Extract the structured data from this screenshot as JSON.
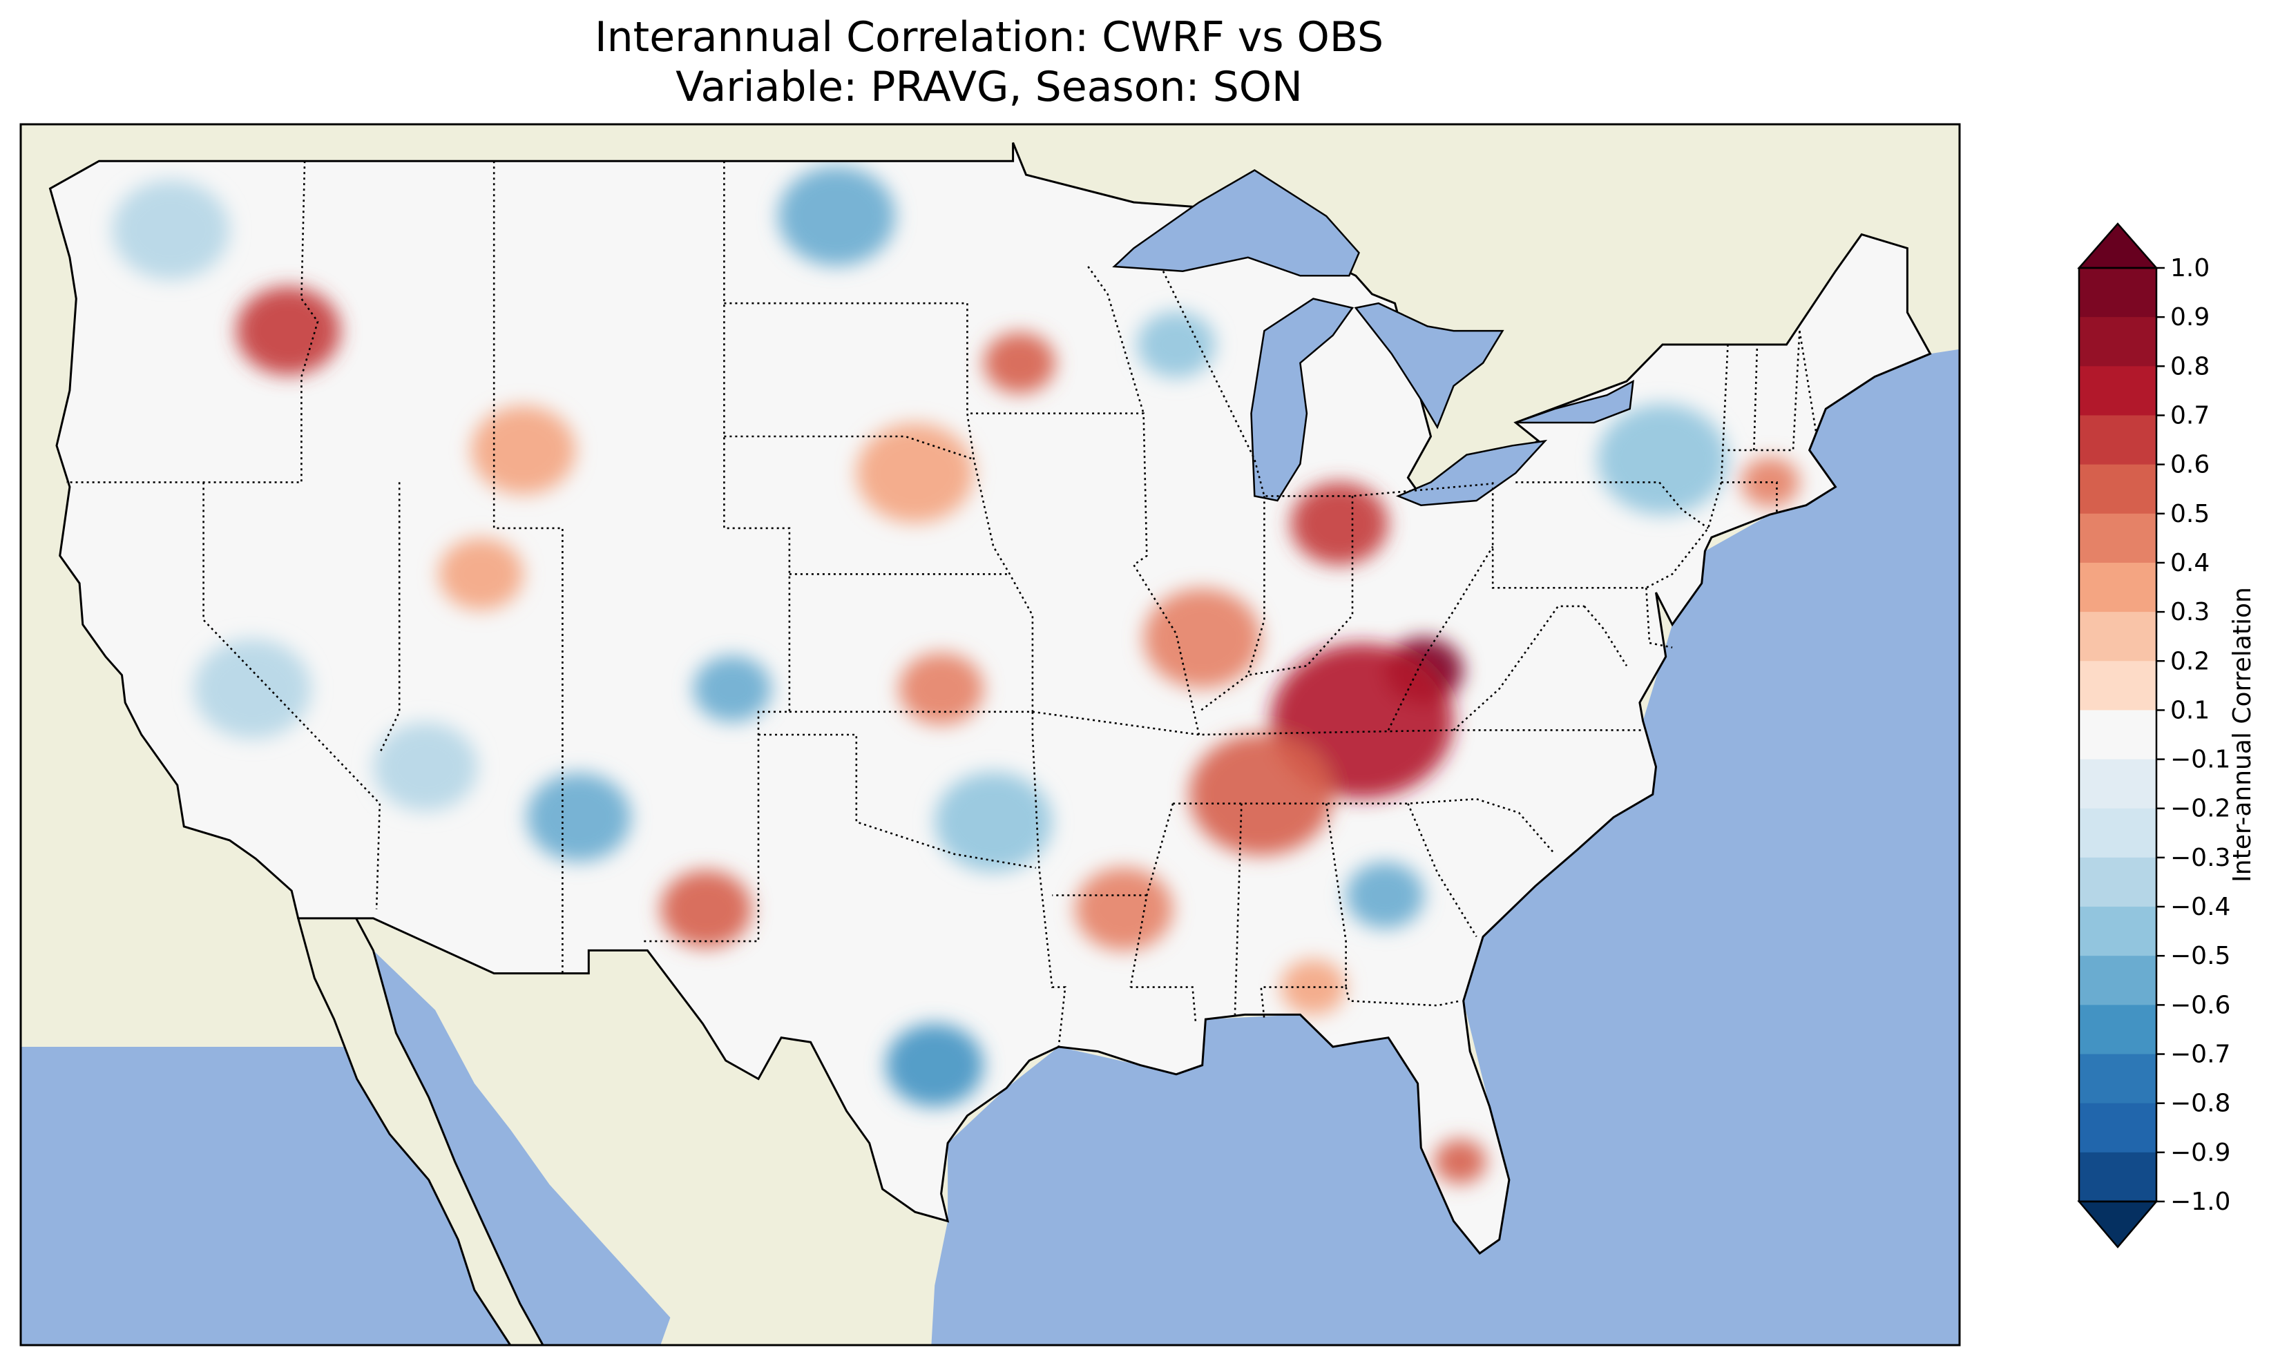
{
  "figure": {
    "title_line1": "Interannual Correlation: CWRF vs OBS",
    "title_line2": "Variable: PRAVG, Season: SON"
  },
  "map": {
    "region": "Contiguous United States with Canada and Mexico",
    "ocean_color": "#94b3df",
    "land_color": "#efefdc",
    "lake_color": "#94b3df",
    "coastline_color": "#000000",
    "border_style": "dotted"
  },
  "colorbar": {
    "label": "Inter-annual Correlation",
    "ticks": [
      "1.0",
      "0.9",
      "0.8",
      "0.7",
      "0.6",
      "0.5",
      "0.4",
      "0.3",
      "0.2",
      "0.1",
      "−0.1",
      "−0.2",
      "−0.3",
      "−0.4",
      "−0.5",
      "−0.6",
      "−0.7",
      "−0.8",
      "−0.9",
      "−1.0"
    ],
    "colors_top_to_bottom": [
      "#67001f",
      "#7c0723",
      "#951127",
      "#b2182b",
      "#c43c3c",
      "#d6604d",
      "#e58267",
      "#f4a582",
      "#f9c4a8",
      "#fddbc7",
      "#f7f7f7",
      "#e1ecf3",
      "#d1e5f0",
      "#b5d6e7",
      "#92c5de",
      "#6aacd0",
      "#4393c3",
      "#2d78b6",
      "#2166ac",
      "#124b8a",
      "#053061"
    ]
  },
  "field_patches": [
    {
      "lon": -82.6,
      "lat": 37.9,
      "r": 1.2,
      "v": 0.95
    },
    {
      "lon": -84.5,
      "lat": 36.8,
      "r": 2.8,
      "v": 0.68
    },
    {
      "lon": -87.6,
      "lat": 35.2,
      "r": 2.2,
      "v": 0.55
    },
    {
      "lon": -85.2,
      "lat": 41.1,
      "r": 1.5,
      "v": 0.58
    },
    {
      "lon": -89.4,
      "lat": 38.6,
      "r": 1.8,
      "v": 0.45
    },
    {
      "lon": -117.4,
      "lat": 45.3,
      "r": 1.6,
      "v": 0.65
    },
    {
      "lon": -95.0,
      "lat": 44.6,
      "r": 1.1,
      "v": 0.55
    },
    {
      "lon": -104.6,
      "lat": 32.7,
      "r": 1.4,
      "v": 0.5
    },
    {
      "lon": -72.0,
      "lat": 42.0,
      "r": 0.9,
      "v": 0.45
    },
    {
      "lon": -81.5,
      "lat": 27.2,
      "r": 0.8,
      "v": 0.5
    },
    {
      "lon": -91.8,
      "lat": 32.7,
      "r": 1.5,
      "v": 0.42
    },
    {
      "lon": -110.2,
      "lat": 42.7,
      "r": 1.6,
      "v": 0.35
    },
    {
      "lon": -98.2,
      "lat": 42.2,
      "r": 1.8,
      "v": 0.32
    },
    {
      "lon": -97.4,
      "lat": 37.5,
      "r": 1.3,
      "v": 0.38
    },
    {
      "lon": -108.5,
      "lat": 34.7,
      "r": 1.6,
      "v": -0.52
    },
    {
      "lon": -103.8,
      "lat": 37.5,
      "r": 1.2,
      "v": -0.48
    },
    {
      "lon": -97.6,
      "lat": 29.3,
      "r": 1.5,
      "v": -0.62
    },
    {
      "lon": -95.8,
      "lat": 34.6,
      "r": 1.8,
      "v": -0.38
    },
    {
      "lon": -100.6,
      "lat": 47.8,
      "r": 1.8,
      "v": -0.45
    },
    {
      "lon": -75.3,
      "lat": 42.5,
      "r": 2.0,
      "v": -0.42
    },
    {
      "lon": -83.8,
      "lat": 33.0,
      "r": 1.2,
      "v": -0.48
    },
    {
      "lon": -121.0,
      "lat": 47.5,
      "r": 1.8,
      "v": -0.3
    },
    {
      "lon": -113.2,
      "lat": 35.8,
      "r": 1.6,
      "v": -0.3
    },
    {
      "lon": -90.2,
      "lat": 45.0,
      "r": 1.2,
      "v": -0.35
    },
    {
      "lon": -118.5,
      "lat": 37.5,
      "r": 1.8,
      "v": -0.25
    },
    {
      "lon": -86.0,
      "lat": 31.0,
      "r": 1.0,
      "v": 0.3
    },
    {
      "lon": -111.5,
      "lat": 40.0,
      "r": 1.3,
      "v": 0.3
    }
  ]
}
